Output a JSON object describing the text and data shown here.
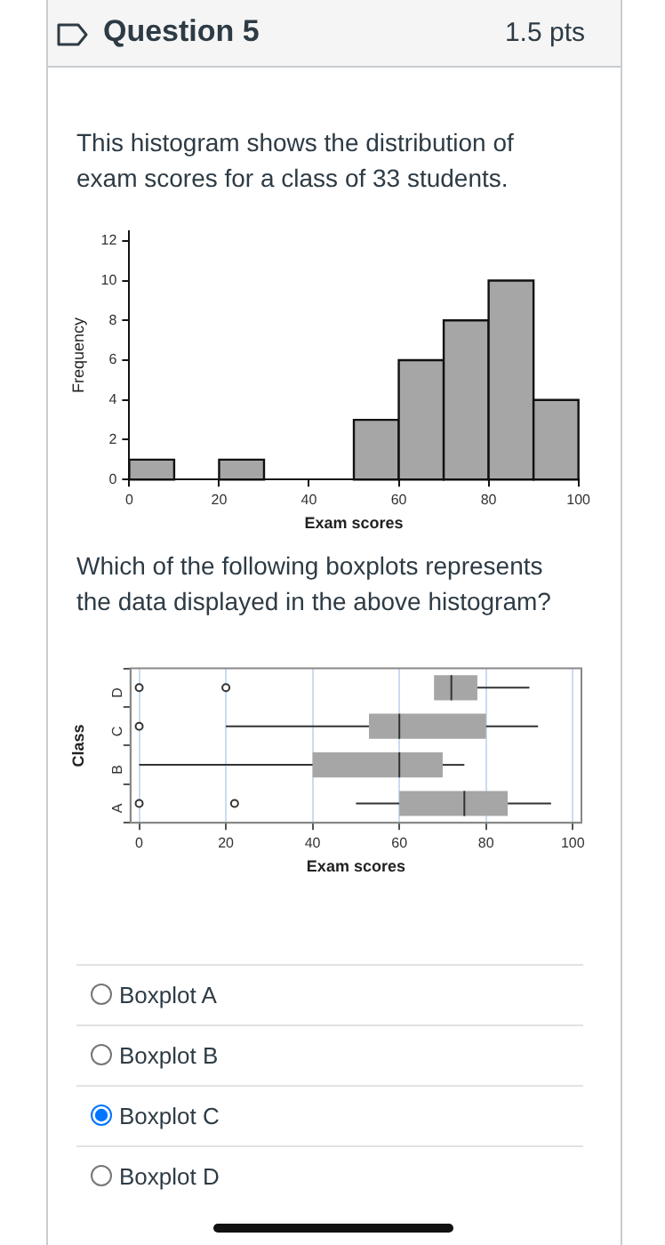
{
  "chart_data": [
    {
      "type": "histogram",
      "title": "Question 5",
      "annotations": [
        "1.5 pts",
        "This histogram shows the distribution of exam scores for a class of 33 students."
      ],
      "xlabel": "Exam scores",
      "ylabel": "Frequency",
      "bins": [
        0,
        10,
        20,
        30,
        40,
        50,
        60,
        70,
        80,
        90,
        100
      ],
      "values": [
        1,
        0,
        1,
        0,
        0,
        3,
        6,
        8,
        10,
        4
      ],
      "color": "#a6a6a6",
      "xlim": [
        0,
        100
      ],
      "xticks": [
        0,
        20,
        40,
        60,
        80,
        100
      ],
      "ylim": [
        0,
        12.5
      ],
      "yticks": [
        0,
        2,
        4,
        6,
        8,
        10,
        12
      ],
      "grid": false
    },
    {
      "type": "box",
      "orientation": "horizontal",
      "annotations": [
        "Which of the following boxplots represents the data displayed in the above histogram?",
        "Boxplot A",
        "Boxplot B",
        "Boxplot C",
        "Boxplot D"
      ],
      "xlabel": "Exam scores",
      "ylabel": "Class",
      "categories": [
        "D",
        "C",
        "B",
        "A"
      ],
      "color": "#a6a6a6",
      "boxes": [
        {
          "low": 68,
          "q1": 68,
          "median": 72,
          "q3": 78,
          "high": 90,
          "outliers": [
            0,
            20
          ]
        },
        {
          "low": 20,
          "q1": 53,
          "median": 60,
          "q3": 80,
          "high": 92,
          "outliers": [
            0
          ]
        },
        {
          "low": 0,
          "q1": 40,
          "median": 60,
          "q3": 70,
          "high": 75
        },
        {
          "low": 50,
          "q1": 60,
          "median": 75,
          "q3": 85,
          "high": 95,
          "outliers": [
            0,
            22
          ]
        }
      ],
      "xlim": [
        -2,
        102
      ],
      "xticks": [
        0,
        20,
        40,
        60,
        80,
        100
      ],
      "grid": "x"
    }
  ]
}
